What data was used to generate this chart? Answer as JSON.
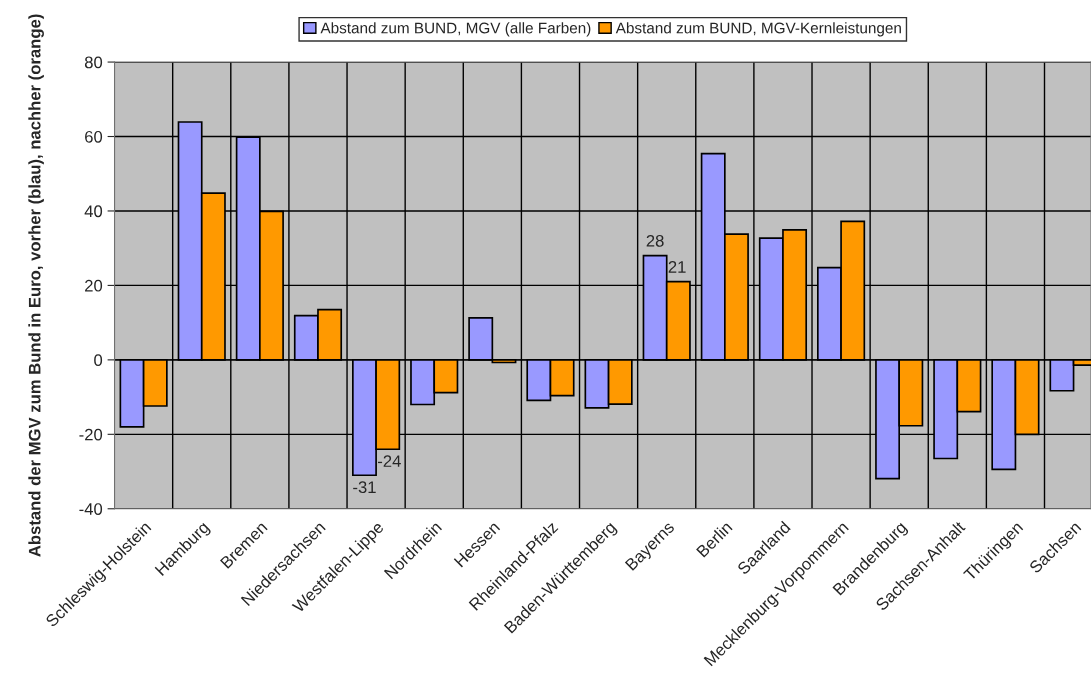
{
  "chart_data": {
    "type": "bar",
    "ylabel": "Abstand der MGV zum Bund in Euro, vorher (blau), nachher (orange)",
    "categories": [
      "Schleswig-Holstein",
      "Hamburg",
      "Bremen",
      "Niedersachsen",
      "Westfalen-Lippe",
      "Nordrhein",
      "Hessen",
      "Rheinland-Pfalz",
      "Baden-Württemberg",
      "Bayerns",
      "Berlin",
      "Saarland",
      "Mecklenburg-Vorpommern",
      "Brandenburg",
      "Sachsen-Anhalt",
      "Thüringen",
      "Sachsen"
    ],
    "series": [
      {
        "name": "Abstand zum BUND, MGV (alle Farben)",
        "color": "#9999ff",
        "values": [
          -18.0,
          63.9,
          59.8,
          11.9,
          -31,
          -12.0,
          11.3,
          -10.9,
          -12.9,
          28,
          55.4,
          32.7,
          24.8,
          -31.9,
          -26.5,
          -29.4,
          -8.3
        ],
        "value_labels": [
          null,
          null,
          null,
          null,
          "-31",
          null,
          null,
          null,
          null,
          "28",
          null,
          null,
          null,
          null,
          null,
          null,
          null
        ]
      },
      {
        "name": "Abstand zum BUND, MGV-Kernleistungen",
        "color": "#ff9900",
        "values": [
          -12.4,
          44.8,
          39.9,
          13.5,
          -24,
          -8.8,
          -0.7,
          -9.6,
          -11.9,
          21,
          33.8,
          34.9,
          37.2,
          -17.7,
          -13.9,
          -20.0,
          -1.4
        ],
        "value_labels": [
          null,
          null,
          null,
          null,
          "-24",
          null,
          null,
          null,
          null,
          "21",
          null,
          null,
          null,
          null,
          null,
          null,
          null
        ]
      }
    ],
    "ylim": [
      -40,
      80
    ],
    "yticks": [
      -40,
      -20,
      0,
      20,
      40,
      60,
      80
    ],
    "grid": true,
    "legend": "top"
  }
}
